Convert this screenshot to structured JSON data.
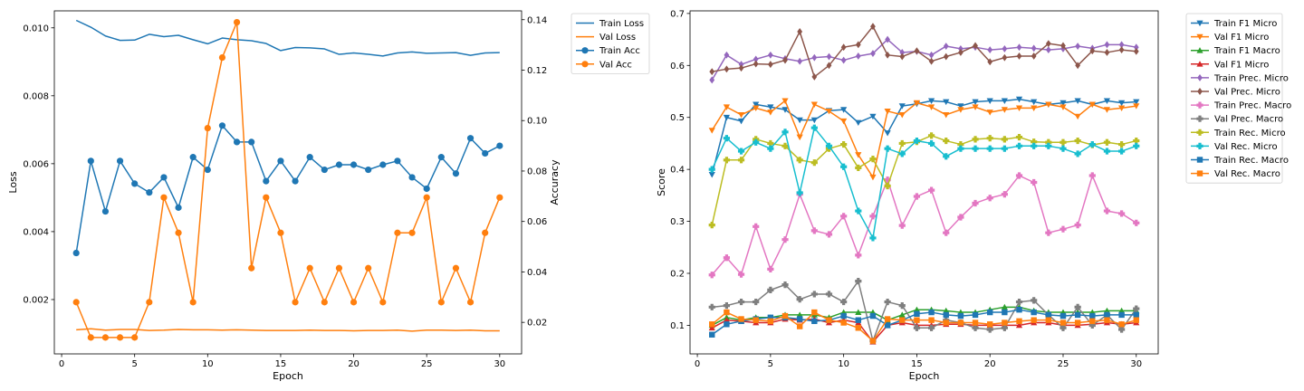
{
  "chart_data": [
    {
      "type": "line",
      "xlabel": "Epoch",
      "ylabel": "Loss",
      "y2label": "Accuracy",
      "xlim": [
        -0.5,
        31.5
      ],
      "ylim": [
        0.0004,
        0.0105
      ],
      "y2lim": [
        0.0075,
        0.1435
      ],
      "xticks": [
        0,
        5,
        10,
        15,
        20,
        25,
        30
      ],
      "yticks": [
        0.002,
        0.004,
        0.006,
        0.008,
        0.01
      ],
      "yticklabels": [
        "0.002",
        "0.004",
        "0.006",
        "0.008",
        "0.010"
      ],
      "y2ticks": [
        0.02,
        0.04,
        0.06,
        0.08,
        0.1,
        0.12,
        0.14
      ],
      "y2ticklabels": [
        "0.02",
        "0.04",
        "0.06",
        "0.08",
        "0.10",
        "0.12",
        "0.14"
      ],
      "legend_position": "outside-right-top",
      "grid": false,
      "x": [
        1,
        2,
        3,
        4,
        5,
        6,
        7,
        8,
        9,
        10,
        11,
        12,
        13,
        14,
        15,
        16,
        17,
        18,
        19,
        20,
        21,
        22,
        23,
        24,
        25,
        26,
        27,
        28,
        29,
        30
      ],
      "series": [
        {
          "name": "Train Loss",
          "axis": "left",
          "color": "#1f77b4",
          "marker": "none",
          "values": [
            0.01022,
            0.01002,
            0.00976,
            0.00963,
            0.00964,
            0.00981,
            0.00974,
            0.00978,
            0.00965,
            0.00953,
            0.0097,
            0.00965,
            0.00962,
            0.00954,
            0.00933,
            0.00942,
            0.00941,
            0.00938,
            0.00922,
            0.00926,
            0.00922,
            0.00917,
            0.00926,
            0.00929,
            0.00925,
            0.00926,
            0.00927,
            0.00919,
            0.00926,
            0.00927
          ]
        },
        {
          "name": "Val Loss",
          "axis": "left",
          "color": "#ff7f0e",
          "marker": "none",
          "values": [
            0.00111,
            0.00114,
            0.0011,
            0.00112,
            0.00112,
            0.00109,
            0.0011,
            0.00112,
            0.00111,
            0.00111,
            0.0011,
            0.00111,
            0.0011,
            0.00109,
            0.00109,
            0.00109,
            0.0011,
            0.00109,
            0.00109,
            0.00108,
            0.00109,
            0.00109,
            0.0011,
            0.00107,
            0.0011,
            0.0011,
            0.00109,
            0.0011,
            0.00108,
            0.00108
          ]
        },
        {
          "name": "Train Acc",
          "axis": "right",
          "color": "#1f77b4",
          "marker": "circle",
          "values": [
            0.0475,
            0.084,
            0.064,
            0.084,
            0.075,
            0.0715,
            0.0775,
            0.0655,
            0.0855,
            0.0805,
            0.098,
            0.0915,
            0.0915,
            0.076,
            0.084,
            0.076,
            0.0855,
            0.0805,
            0.0825,
            0.0825,
            0.0805,
            0.0825,
            0.084,
            0.0775,
            0.073,
            0.0855,
            0.079,
            0.093,
            0.087,
            0.09
          ]
        },
        {
          "name": "Val Acc",
          "axis": "right",
          "color": "#ff7f0e",
          "marker": "circle",
          "values": [
            0.028,
            0.014,
            0.014,
            0.014,
            0.014,
            0.028,
            0.0695,
            0.0555,
            0.028,
            0.097,
            0.125,
            0.139,
            0.0415,
            0.0695,
            0.0555,
            0.028,
            0.0415,
            0.028,
            0.0415,
            0.028,
            0.0415,
            0.028,
            0.0555,
            0.0555,
            0.0695,
            0.028,
            0.0415,
            0.028,
            0.0555,
            0.0695
          ]
        }
      ]
    },
    {
      "type": "line",
      "xlabel": "Epoch",
      "ylabel": "Score",
      "xlim": [
        -0.5,
        31.5
      ],
      "ylim": [
        0.045,
        0.705
      ],
      "xticks": [
        0,
        5,
        10,
        15,
        20,
        25,
        30
      ],
      "yticks": [
        0.1,
        0.2,
        0.3,
        0.4,
        0.5,
        0.6,
        0.7
      ],
      "yticklabels": [
        "0.1",
        "0.2",
        "0.3",
        "0.4",
        "0.5",
        "0.6",
        "0.7"
      ],
      "legend_position": "outside-right-top",
      "grid": false,
      "x": [
        1,
        2,
        3,
        4,
        5,
        6,
        7,
        8,
        9,
        10,
        11,
        12,
        13,
        14,
        15,
        16,
        17,
        18,
        19,
        20,
        21,
        22,
        23,
        24,
        25,
        26,
        27,
        28,
        29,
        30
      ],
      "series": [
        {
          "name": "Train F1 Micro",
          "color": "#1f77b4",
          "marker": "triangle-down",
          "values": [
            0.39,
            0.5,
            0.493,
            0.525,
            0.52,
            0.515,
            0.495,
            0.495,
            0.513,
            0.515,
            0.49,
            0.502,
            0.47,
            0.522,
            0.526,
            0.532,
            0.53,
            0.522,
            0.53,
            0.532,
            0.532,
            0.535,
            0.53,
            0.525,
            0.528,
            0.532,
            0.525,
            0.532,
            0.528,
            0.53
          ]
        },
        {
          "name": "Val F1 Micro",
          "color": "#ff7f0e",
          "marker": "triangle-down",
          "values": [
            0.475,
            0.52,
            0.505,
            0.518,
            0.51,
            0.532,
            0.462,
            0.525,
            0.512,
            0.493,
            0.428,
            0.385,
            0.512,
            0.505,
            0.528,
            0.52,
            0.505,
            0.515,
            0.52,
            0.51,
            0.515,
            0.518,
            0.518,
            0.525,
            0.52,
            0.502,
            0.525,
            0.515,
            0.518,
            0.522
          ]
        },
        {
          "name": "Train F1 Macro",
          "color": "#2ca02c",
          "marker": "triangle-up",
          "values": [
            0.1,
            0.115,
            0.11,
            0.115,
            0.115,
            0.12,
            0.12,
            0.12,
            0.115,
            0.125,
            0.125,
            0.125,
            0.11,
            0.12,
            0.13,
            0.13,
            0.128,
            0.125,
            0.125,
            0.13,
            0.135,
            0.135,
            0.128,
            0.125,
            0.125,
            0.125,
            0.125,
            0.128,
            0.128,
            0.128
          ]
        },
        {
          "name": "Val F1 Micro",
          "color": "#d62728",
          "marker": "triangle-up",
          "values": [
            0.095,
            0.11,
            0.108,
            0.105,
            0.105,
            0.112,
            0.11,
            0.112,
            0.105,
            0.11,
            0.105,
            0.068,
            0.1,
            0.105,
            0.1,
            0.1,
            0.102,
            0.102,
            0.1,
            0.1,
            0.1,
            0.1,
            0.105,
            0.105,
            0.1,
            0.1,
            0.102,
            0.105,
            0.102,
            0.105
          ]
        },
        {
          "name": "Train Prec. Micro",
          "color": "#9467bd",
          "marker": "diamond",
          "values": [
            0.572,
            0.62,
            0.602,
            0.612,
            0.62,
            0.613,
            0.608,
            0.615,
            0.617,
            0.61,
            0.618,
            0.623,
            0.65,
            0.625,
            0.627,
            0.62,
            0.637,
            0.632,
            0.635,
            0.63,
            0.632,
            0.635,
            0.633,
            0.63,
            0.632,
            0.637,
            0.633,
            0.64,
            0.64,
            0.635
          ]
        },
        {
          "name": "Val Prec. Micro",
          "color": "#8c564b",
          "marker": "diamond",
          "values": [
            0.588,
            0.593,
            0.595,
            0.603,
            0.602,
            0.61,
            0.665,
            0.578,
            0.6,
            0.635,
            0.64,
            0.675,
            0.62,
            0.617,
            0.628,
            0.608,
            0.617,
            0.625,
            0.638,
            0.607,
            0.615,
            0.618,
            0.618,
            0.642,
            0.638,
            0.6,
            0.628,
            0.625,
            0.63,
            0.627
          ]
        },
        {
          "name": "Train Prec. Macro",
          "color": "#e377c2",
          "marker": "plus",
          "values": [
            0.197,
            0.23,
            0.198,
            0.29,
            0.208,
            0.265,
            0.352,
            0.282,
            0.275,
            0.31,
            0.235,
            0.31,
            0.38,
            0.292,
            0.348,
            0.36,
            0.278,
            0.308,
            0.335,
            0.345,
            0.352,
            0.388,
            0.375,
            0.278,
            0.285,
            0.293,
            0.388,
            0.32,
            0.315,
            0.297
          ]
        },
        {
          "name": "Val Prec. Macro",
          "color": "#7f7f7f",
          "marker": "plus",
          "values": [
            0.135,
            0.138,
            0.145,
            0.145,
            0.168,
            0.178,
            0.15,
            0.16,
            0.16,
            0.145,
            0.185,
            0.07,
            0.145,
            0.138,
            0.095,
            0.095,
            0.11,
            0.105,
            0.095,
            0.092,
            0.095,
            0.145,
            0.148,
            0.12,
            0.095,
            0.135,
            0.1,
            0.12,
            0.092,
            0.132
          ]
        },
        {
          "name": "Train Rec. Micro",
          "color": "#bcbd22",
          "marker": "plus",
          "values": [
            0.293,
            0.418,
            0.418,
            0.458,
            0.45,
            0.445,
            0.418,
            0.413,
            0.44,
            0.448,
            0.403,
            0.42,
            0.368,
            0.45,
            0.453,
            0.465,
            0.455,
            0.448,
            0.458,
            0.46,
            0.458,
            0.462,
            0.453,
            0.452,
            0.452,
            0.455,
            0.447,
            0.452,
            0.448,
            0.455
          ]
        },
        {
          "name": "Val Rec. Micro",
          "color": "#17becf",
          "marker": "plus",
          "values": [
            0.4,
            0.46,
            0.435,
            0.452,
            0.44,
            0.472,
            0.355,
            0.48,
            0.445,
            0.405,
            0.32,
            0.268,
            0.44,
            0.43,
            0.455,
            0.45,
            0.425,
            0.44,
            0.44,
            0.44,
            0.44,
            0.445,
            0.445,
            0.445,
            0.44,
            0.43,
            0.448,
            0.435,
            0.435,
            0.445
          ]
        },
        {
          "name": "Train Rec. Macro",
          "color": "#1f77b4",
          "marker": "square",
          "values": [
            0.082,
            0.102,
            0.108,
            0.112,
            0.115,
            0.115,
            0.112,
            0.108,
            0.11,
            0.118,
            0.11,
            0.118,
            0.1,
            0.11,
            0.122,
            0.125,
            0.12,
            0.118,
            0.12,
            0.125,
            0.125,
            0.13,
            0.125,
            0.12,
            0.118,
            0.12,
            0.118,
            0.12,
            0.12,
            0.12
          ]
        },
        {
          "name": "Val Rec. Macro",
          "color": "#ff7f0e",
          "marker": "square",
          "values": [
            0.102,
            0.125,
            0.112,
            0.11,
            0.108,
            0.118,
            0.098,
            0.125,
            0.11,
            0.105,
            0.095,
            0.07,
            0.112,
            0.11,
            0.11,
            0.11,
            0.105,
            0.105,
            0.105,
            0.102,
            0.105,
            0.108,
            0.11,
            0.11,
            0.105,
            0.105,
            0.108,
            0.11,
            0.102,
            0.11
          ]
        }
      ]
    }
  ]
}
